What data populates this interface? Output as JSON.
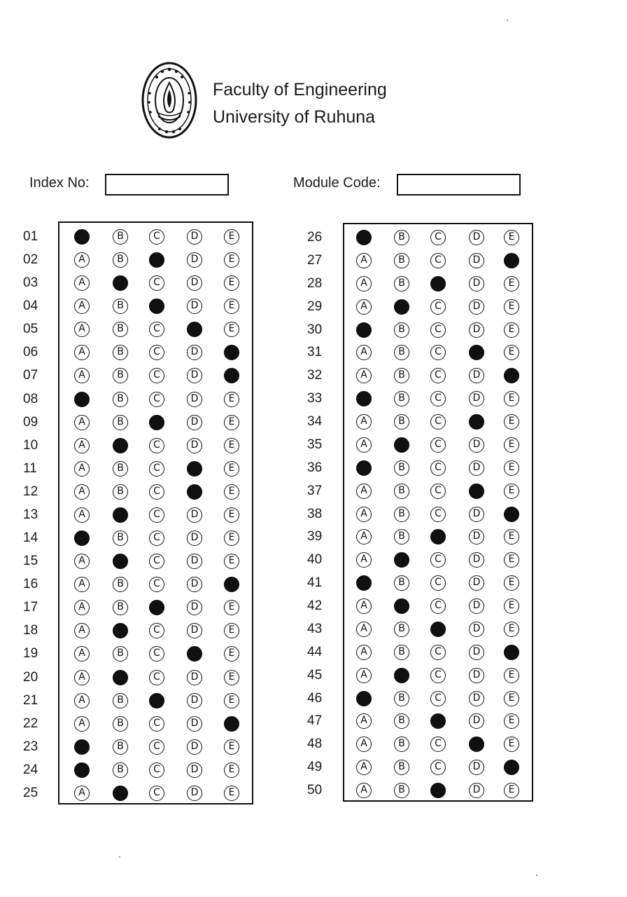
{
  "header": {
    "faculty": "Faculty of Engineering",
    "university": "University of Ruhuna",
    "logo_icon": "university-of-ruhuna-emblem"
  },
  "fields": {
    "index_label": "Index No:",
    "index_value": "",
    "module_label": "Module Code:",
    "module_value": ""
  },
  "options": [
    "A",
    "B",
    "C",
    "D",
    "E"
  ],
  "answers": [
    {
      "q": "01",
      "marked": "A"
    },
    {
      "q": "02",
      "marked": "C"
    },
    {
      "q": "03",
      "marked": "B"
    },
    {
      "q": "04",
      "marked": "C"
    },
    {
      "q": "05",
      "marked": "D"
    },
    {
      "q": "06",
      "marked": "E"
    },
    {
      "q": "07",
      "marked": "E"
    },
    {
      "q": "08",
      "marked": "A"
    },
    {
      "q": "09",
      "marked": "C"
    },
    {
      "q": "10",
      "marked": "B"
    },
    {
      "q": "11",
      "marked": "D"
    },
    {
      "q": "12",
      "marked": "D"
    },
    {
      "q": "13",
      "marked": "B"
    },
    {
      "q": "14",
      "marked": "A"
    },
    {
      "q": "15",
      "marked": "B"
    },
    {
      "q": "16",
      "marked": "E"
    },
    {
      "q": "17",
      "marked": "C"
    },
    {
      "q": "18",
      "marked": "B"
    },
    {
      "q": "19",
      "marked": "D"
    },
    {
      "q": "20",
      "marked": "B"
    },
    {
      "q": "21",
      "marked": "C"
    },
    {
      "q": "22",
      "marked": "E"
    },
    {
      "q": "23",
      "marked": "A"
    },
    {
      "q": "24",
      "marked": "A"
    },
    {
      "q": "25",
      "marked": "B"
    },
    {
      "q": "26",
      "marked": "A"
    },
    {
      "q": "27",
      "marked": "E"
    },
    {
      "q": "28",
      "marked": "C"
    },
    {
      "q": "29",
      "marked": "B"
    },
    {
      "q": "30",
      "marked": "A"
    },
    {
      "q": "31",
      "marked": "D"
    },
    {
      "q": "32",
      "marked": "E"
    },
    {
      "q": "33",
      "marked": "A"
    },
    {
      "q": "34",
      "marked": "D"
    },
    {
      "q": "35",
      "marked": "B"
    },
    {
      "q": "36",
      "marked": "A"
    },
    {
      "q": "37",
      "marked": "D"
    },
    {
      "q": "38",
      "marked": "E"
    },
    {
      "q": "39",
      "marked": "C"
    },
    {
      "q": "40",
      "marked": "B"
    },
    {
      "q": "41",
      "marked": "A"
    },
    {
      "q": "42",
      "marked": "B"
    },
    {
      "q": "43",
      "marked": "C"
    },
    {
      "q": "44",
      "marked": "E"
    },
    {
      "q": "45",
      "marked": "B"
    },
    {
      "q": "46",
      "marked": "A"
    },
    {
      "q": "47",
      "marked": "C"
    },
    {
      "q": "48",
      "marked": "D"
    },
    {
      "q": "49",
      "marked": "E"
    },
    {
      "q": "50",
      "marked": "C"
    }
  ],
  "colors": {
    "ink": "#111111",
    "fill": "#101010",
    "paper": "#ffffff"
  }
}
